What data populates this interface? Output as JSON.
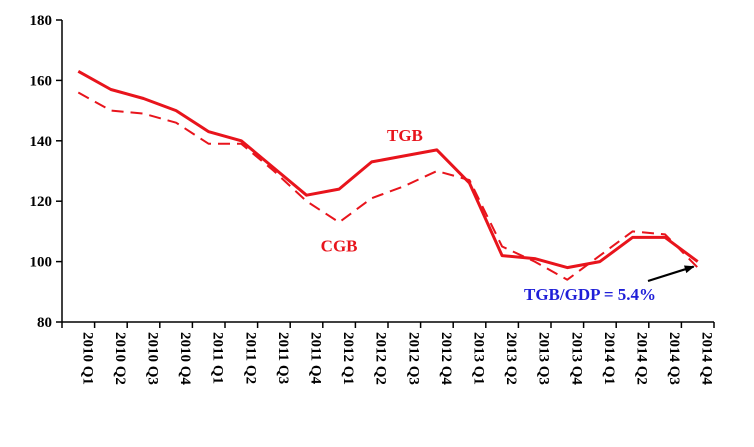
{
  "chart_data": {
    "type": "line",
    "title": "",
    "xlabel": "",
    "ylabel": "",
    "categories": [
      "2010 Q1",
      "2010 Q2",
      "2010 Q3",
      "2010 Q4",
      "2011 Q1",
      "2011 Q2",
      "2011 Q3",
      "2011 Q4",
      "2012 Q1",
      "2012 Q2",
      "2012 Q3",
      "2012 Q4",
      "2013 Q1",
      "2013 Q2",
      "2013 Q3",
      "2013 Q4",
      "2014 Q1",
      "2014 Q2",
      "2014 Q3",
      "2014 Q4"
    ],
    "ylim": [
      80,
      180
    ],
    "yticks": [
      80,
      100,
      120,
      140,
      160,
      180
    ],
    "grid": false,
    "series": [
      {
        "name": "TGB",
        "style": "solid",
        "color": "#e8141c",
        "values": [
          163,
          157,
          154,
          150,
          143,
          140,
          131,
          122,
          124,
          133,
          135,
          137,
          126,
          102,
          101,
          98,
          100,
          108,
          108,
          100
        ]
      },
      {
        "name": "CGB",
        "style": "dashed",
        "color": "#e8141c",
        "values": [
          156,
          150,
          149,
          146,
          139,
          139,
          130,
          120,
          113,
          121,
          125,
          130,
          127,
          105,
          100,
          94,
          102,
          110,
          109,
          98
        ]
      }
    ],
    "annotations": [
      {
        "text": "TGB/GDP = 5.4%",
        "color": "#1f1fd8",
        "points_to": "2014 Q4"
      }
    ]
  }
}
